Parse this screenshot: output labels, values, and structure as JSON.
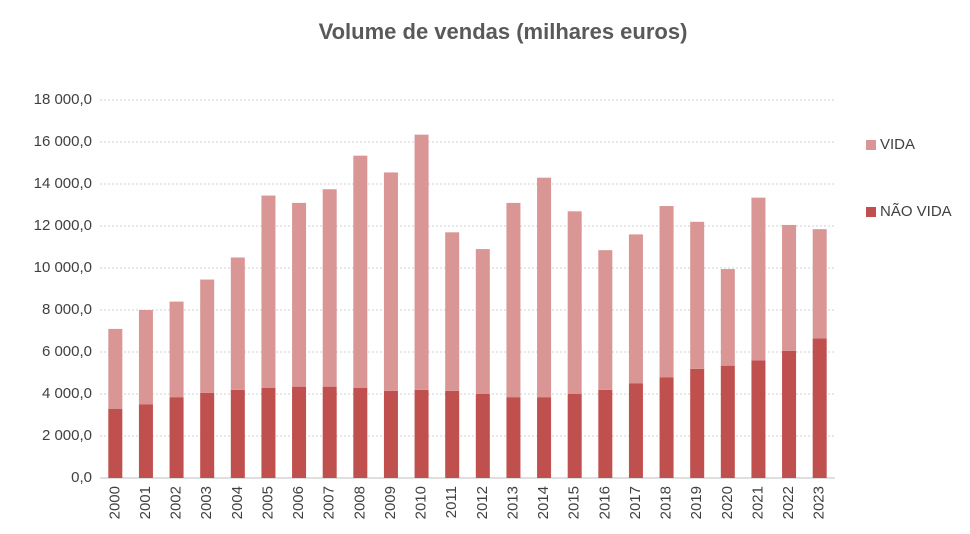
{
  "chart_data": {
    "type": "bar",
    "stacked": true,
    "title": "Volume de vendas (milhares euros)",
    "categories": [
      "2000",
      "2001",
      "2002",
      "2003",
      "2004",
      "2005",
      "2006",
      "2007",
      "2008",
      "2009",
      "2010",
      "2011",
      "2012",
      "2013",
      "2014",
      "2015",
      "2016",
      "2017",
      "2018",
      "2019",
      "2020",
      "2021",
      "2022",
      "2023"
    ],
    "series": [
      {
        "name": "NÃO VIDA",
        "color": "#c0504d",
        "values": [
          3300,
          3500,
          3850,
          4050,
          4200,
          4300,
          4350,
          4350,
          4300,
          4150,
          4200,
          4150,
          4000,
          3850,
          3850,
          4000,
          4200,
          4500,
          4800,
          5200,
          5350,
          5600,
          6050,
          6650
        ]
      },
      {
        "name": "VIDA",
        "color": "#d99694",
        "values": [
          3800,
          4500,
          4550,
          5400,
          6300,
          9150,
          8750,
          9400,
          11050,
          10400,
          12150,
          7550,
          6900,
          9250,
          10450,
          8700,
          6650,
          7100,
          8150,
          7000,
          4600,
          7750,
          6000,
          5200
        ]
      }
    ],
    "ylim": [
      0,
      18000
    ],
    "yticks": [
      {
        "value": 0,
        "label": "0,0"
      },
      {
        "value": 2000,
        "label": "2 000,0"
      },
      {
        "value": 4000,
        "label": "4 000,0"
      },
      {
        "value": 6000,
        "label": "6 000,0"
      },
      {
        "value": 8000,
        "label": "8 000,0"
      },
      {
        "value": 10000,
        "label": "10 000,0"
      },
      {
        "value": 12000,
        "label": "12 000,0"
      },
      {
        "value": 14000,
        "label": "14 000,0"
      },
      {
        "value": 16000,
        "label": "16 000,0"
      },
      {
        "value": 18000,
        "label": "18 000,0"
      }
    ],
    "grid": true,
    "legend": "right"
  }
}
